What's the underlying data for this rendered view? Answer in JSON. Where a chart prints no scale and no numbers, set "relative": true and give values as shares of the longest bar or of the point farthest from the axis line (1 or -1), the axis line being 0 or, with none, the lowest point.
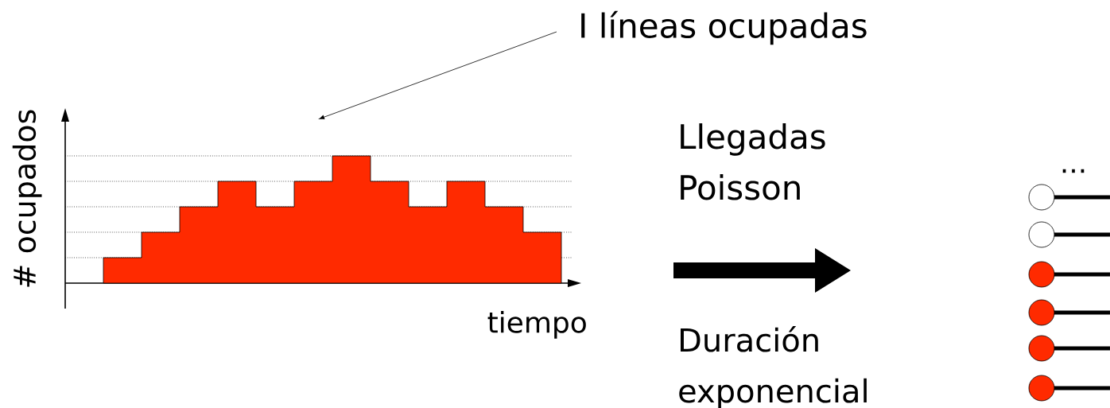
{
  "chart_data": {
    "type": "area",
    "relative": true,
    "ylabel": "# ocupados",
    "xlabel": "tiempo",
    "categories": [
      null,
      null,
      null,
      null,
      null,
      null,
      null,
      null,
      null,
      null,
      null,
      null,
      null
    ],
    "values": [
      0.2,
      0.4,
      0.6,
      0.8,
      0.6,
      0.8,
      1,
      0.8,
      0.6,
      0.8,
      0.6,
      0.4,
      0
    ],
    "color": "#ff2a00",
    "grid": "y",
    "annotations": [
      "I líneas ocupadas",
      "Llegadas Poisson",
      "Duración exponencial",
      "..."
    ]
  }
}
